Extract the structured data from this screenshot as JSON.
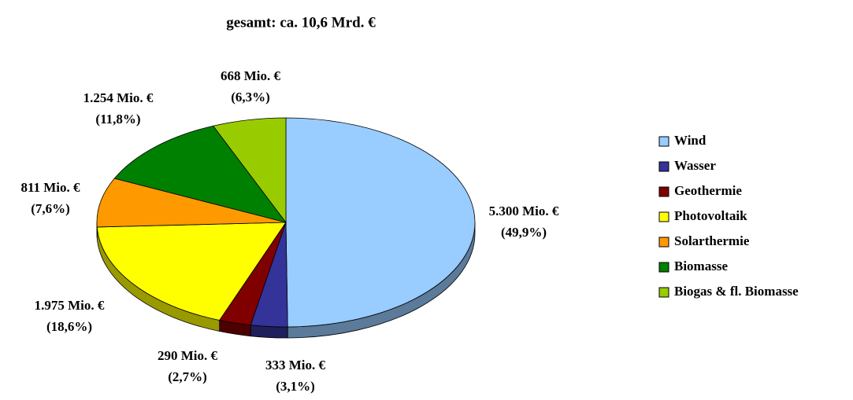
{
  "chart_data": {
    "type": "pie",
    "title": "gesamt: ca. 10,6 Mrd. €",
    "categories": [
      "Wind",
      "Wasser",
      "Geothermie",
      "Photovoltaik",
      "Solarthermie",
      "Biomasse",
      "Biogas & fl. Biomasse"
    ],
    "values": [
      5300,
      333,
      290,
      1975,
      811,
      1254,
      668
    ],
    "value_labels": [
      "5.300 Mio. €",
      "333 Mio. €",
      "290 Mio. €",
      "1.975 Mio. €",
      "811 Mio. €",
      "1.254 Mio. €",
      "668 Mio. €"
    ],
    "percent_labels": [
      "(49,9%)",
      "(3,1%)",
      "(2,7%)",
      "(18,6%)",
      "(7,6%)",
      "(11,8%)",
      "(6,3%)"
    ],
    "colors": [
      "#99ccff",
      "#333399",
      "#800000",
      "#ffff00",
      "#ff9900",
      "#008000",
      "#99cc00"
    ],
    "legend": "right"
  }
}
